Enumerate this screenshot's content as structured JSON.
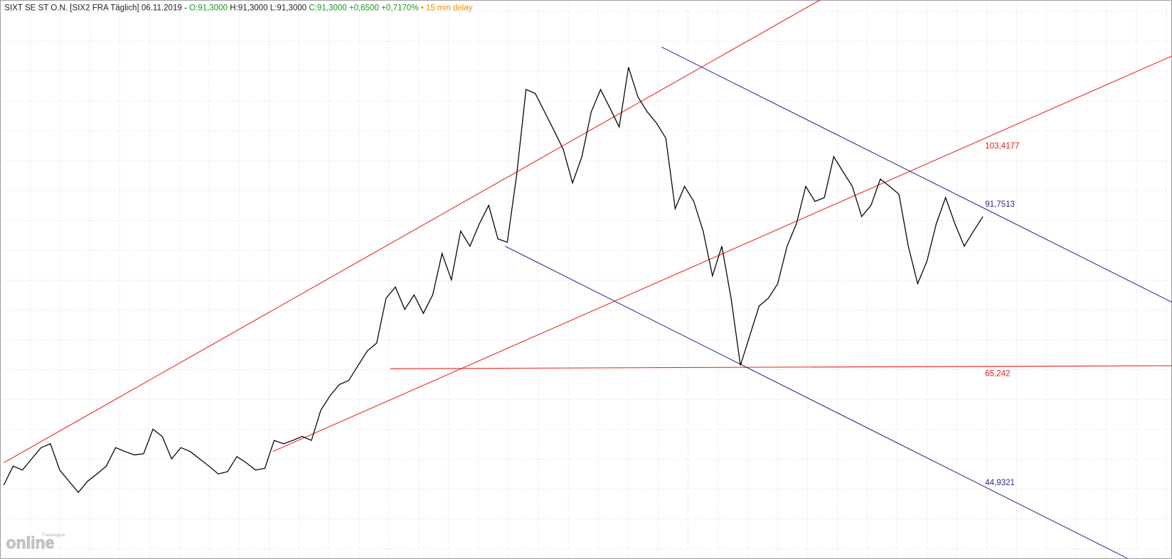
{
  "header": {
    "instrument": "SIXT SE ST O.N. [SIX2 FRA Täglich] 06.11.2019 -",
    "open": "O:91,3000",
    "high_low": "H:91,3000 L:91,3000",
    "close": "C:91,3000",
    "change": "+0,6500",
    "change_pct": "+0,7170%",
    "delay": "• 15 min delay"
  },
  "logo": {
    "small": "Tradesignal",
    "big": "online"
  },
  "chart_data": {
    "type": "line",
    "color": "#000000",
    "ylim": [
      28.1,
      128
    ],
    "grid": true,
    "values": [
      41.3,
      44.7,
      44.0,
      46.0,
      48.0,
      48.7,
      44.0,
      42.0,
      40.0,
      42.0,
      43.3,
      44.7,
      48.0,
      47.3,
      46.7,
      46.9,
      51.3,
      50.0,
      46.0,
      48.0,
      47.3,
      46.0,
      44.7,
      43.3,
      43.7,
      46.4,
      45.3,
      44.0,
      44.3,
      49.3,
      48.7,
      49.3,
      50.0,
      49.3,
      54.7,
      57.3,
      59.3,
      60.0,
      62.7,
      65.3,
      66.7,
      74.7,
      76.7,
      72.7,
      75.3,
      72.0,
      75.3,
      82.7,
      78.0,
      86.7,
      84.0,
      88.0,
      91.3,
      85.3,
      84.7,
      96.7,
      112.0,
      111.3,
      108.0,
      104.7,
      101.3,
      95.3,
      100.0,
      108.0,
      112.0,
      108.7,
      105.3,
      116.0,
      110.7,
      108.0,
      106.0,
      103.3,
      90.7,
      94.7,
      92.0,
      86.7,
      78.7,
      84.0,
      74.7,
      62.7,
      68.0,
      73.3,
      74.7,
      77.3,
      84.0,
      88.0,
      94.7,
      92.0,
      92.7,
      100.0,
      97.3,
      94.7,
      89.3,
      91.3,
      96.0,
      94.7,
      93.3,
      84.0,
      77.3,
      81.3,
      88.0,
      92.7,
      88.0,
      84.0,
      86.7,
      89.3
    ],
    "annotations": [
      "103,4177",
      "91,7513",
      "65,242",
      "44,9321"
    ]
  }
}
